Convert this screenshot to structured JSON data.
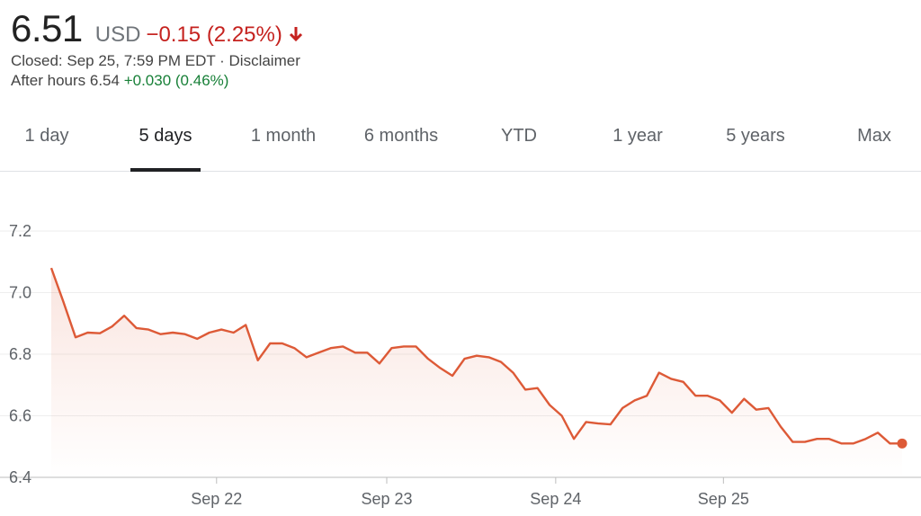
{
  "quote": {
    "price": "6.51",
    "currency": "USD",
    "change": "−0.15 (2.25%)",
    "closed": "Closed: Sep 25, 7:59 PM EDT · Disclaimer",
    "after_hours_label": "After hours 6.54",
    "after_hours_change": "+0.030 (0.46%)",
    "arrow_icon": "arrow-down-icon"
  },
  "tabs": [
    {
      "label": "1 day",
      "active": false
    },
    {
      "label": "5 days",
      "active": true
    },
    {
      "label": "1 month",
      "active": false
    },
    {
      "label": "6 months",
      "active": false
    },
    {
      "label": "YTD",
      "active": false
    },
    {
      "label": "1 year",
      "active": false
    },
    {
      "label": "5 years",
      "active": false
    },
    {
      "label": "Max",
      "active": false
    }
  ],
  "colors": {
    "line": "#dd5a37",
    "negative": "#c5221f",
    "positive": "#188038",
    "grid": "#eeeeee"
  },
  "chart_data": {
    "type": "area",
    "title": "",
    "xlabel": "",
    "ylabel": "",
    "ylim": [
      6.4,
      7.2
    ],
    "y_ticks": [
      "7.2",
      "7.0",
      "6.8",
      "6.6",
      "6.4"
    ],
    "x_ticks": [
      {
        "label": "Sep 22",
        "index": 13.6
      },
      {
        "label": "Sep 23",
        "index": 27.6
      },
      {
        "label": "Sep 24",
        "index": 41.5
      },
      {
        "label": "Sep 25",
        "index": 55.3
      }
    ],
    "grid": true,
    "legend": "none",
    "series": [
      {
        "values": [
          7.08,
          6.97,
          6.855,
          6.87,
          6.868,
          6.89,
          6.925,
          6.885,
          6.88,
          6.865,
          6.87,
          6.865,
          6.85,
          6.87,
          6.88,
          6.87,
          6.895,
          6.78,
          6.835,
          6.835,
          6.82,
          6.79,
          6.805,
          6.82,
          6.825,
          6.805,
          6.805,
          6.77,
          6.82,
          6.825,
          6.825,
          6.785,
          6.755,
          6.73,
          6.785,
          6.795,
          6.79,
          6.775,
          6.74,
          6.685,
          6.69,
          6.635,
          6.6,
          6.525,
          6.58,
          6.575,
          6.572,
          6.625,
          6.65,
          6.665,
          6.74,
          6.72,
          6.71,
          6.665,
          6.665,
          6.65,
          6.61,
          6.655,
          6.62,
          6.625,
          6.565,
          6.515,
          6.515,
          6.525,
          6.525,
          6.51,
          6.51,
          6.525,
          6.545,
          6.51,
          6.51
        ]
      }
    ]
  }
}
